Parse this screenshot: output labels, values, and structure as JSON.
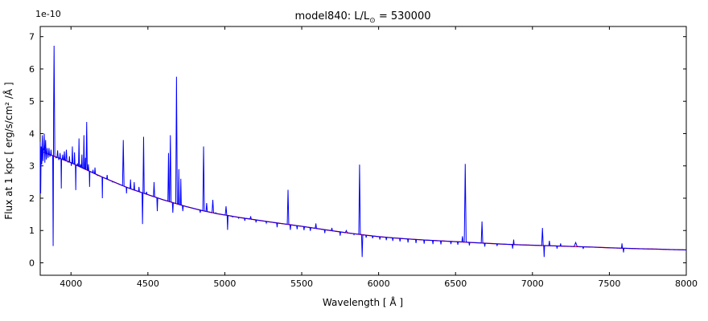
{
  "figure": {
    "title": {
      "prefix": "model840: L/L",
      "sub": "⊙",
      "suffix": " = 530000",
      "full": "model840: L/L⊙ = 530000"
    },
    "offset_label": "1e-10",
    "xlabel": "Wavelength [ Å ]",
    "ylabel": "Flux at 1 kpc [ erg/s/cm² /Å ]"
  },
  "colors": {
    "spectrum": "#0000ff",
    "continuum": "#ff0000",
    "axis": "#000000",
    "background": "#ffffff"
  },
  "chart_data": {
    "type": "line",
    "title": "model840: L/L⊙ = 530000",
    "xlabel": "Wavelength [ Å ]",
    "ylabel": "Flux at 1 kpc [ erg/s/cm² /Å ]",
    "y_offset_scale": "1e-10",
    "xlim": [
      3800,
      8000
    ],
    "ylim": [
      -0.385,
      7.315
    ],
    "xticks": [
      4000,
      4500,
      5000,
      5500,
      6000,
      6500,
      7000,
      7500,
      8000
    ],
    "yticks": [
      0,
      1,
      2,
      3,
      4,
      5,
      6,
      7
    ],
    "grid": false,
    "legend": "none",
    "series": [
      {
        "name": "observed spectrum",
        "color": "#0000ff",
        "style": "continuum plus emission/absorption features"
      },
      {
        "name": "continuum fit",
        "color": "#ff0000",
        "style": "smooth declining continuum"
      }
    ],
    "continuum": [
      [
        3800,
        3.46
      ],
      [
        3850,
        3.37
      ],
      [
        3900,
        3.28
      ],
      [
        3950,
        3.19
      ],
      [
        4000,
        3.1
      ],
      [
        4050,
        2.99
      ],
      [
        4100,
        2.88
      ],
      [
        4150,
        2.77
      ],
      [
        4200,
        2.66
      ],
      [
        4250,
        2.56
      ],
      [
        4300,
        2.46
      ],
      [
        4350,
        2.36
      ],
      [
        4400,
        2.27
      ],
      [
        4450,
        2.19
      ],
      [
        4500,
        2.11
      ],
      [
        4550,
        2.03
      ],
      [
        4600,
        1.95
      ],
      [
        4650,
        1.88
      ],
      [
        4700,
        1.81
      ],
      [
        4750,
        1.74
      ],
      [
        4800,
        1.68
      ],
      [
        4850,
        1.62
      ],
      [
        4900,
        1.57
      ],
      [
        4950,
        1.52
      ],
      [
        5000,
        1.48
      ],
      [
        5100,
        1.4
      ],
      [
        5200,
        1.33
      ],
      [
        5300,
        1.26
      ],
      [
        5400,
        1.195
      ],
      [
        5500,
        1.13
      ],
      [
        5600,
        1.06
      ],
      [
        5700,
        0.99
      ],
      [
        5800,
        0.925
      ],
      [
        5900,
        0.865
      ],
      [
        6000,
        0.81
      ],
      [
        6100,
        0.77
      ],
      [
        6200,
        0.735
      ],
      [
        6300,
        0.705
      ],
      [
        6400,
        0.68
      ],
      [
        6500,
        0.655
      ],
      [
        6600,
        0.63
      ],
      [
        6700,
        0.605
      ],
      [
        6800,
        0.58
      ],
      [
        6900,
        0.56
      ],
      [
        7000,
        0.545
      ],
      [
        7100,
        0.53
      ],
      [
        7200,
        0.515
      ],
      [
        7300,
        0.5
      ],
      [
        7400,
        0.485
      ],
      [
        7500,
        0.465
      ],
      [
        7600,
        0.45
      ],
      [
        7700,
        0.435
      ],
      [
        7800,
        0.425
      ],
      [
        7900,
        0.41
      ],
      [
        8000,
        0.4
      ]
    ],
    "features": [
      [
        3800,
        3.75,
        3
      ],
      [
        3803,
        2.15,
        3
      ],
      [
        3806,
        3.6,
        2
      ],
      [
        3810,
        3.05,
        2
      ],
      [
        3814,
        3.95,
        3
      ],
      [
        3818,
        3.15,
        2
      ],
      [
        3822,
        3.55,
        2
      ],
      [
        3826,
        4.0,
        3
      ],
      [
        3830,
        3.1,
        2
      ],
      [
        3835,
        3.8,
        3
      ],
      [
        3840,
        3.2,
        2
      ],
      [
        3845,
        3.55,
        2
      ],
      [
        3851,
        3.25,
        2
      ],
      [
        3857,
        3.55,
        3
      ],
      [
        3863,
        3.28,
        2
      ],
      [
        3870,
        3.5,
        3
      ],
      [
        3877,
        3.32,
        2
      ],
      [
        3884,
        0.52,
        3
      ],
      [
        3890,
        6.72,
        5
      ],
      [
        3903,
        3.25,
        3
      ],
      [
        3913,
        3.48,
        4
      ],
      [
        3921,
        3.18,
        2
      ],
      [
        3929,
        3.4,
        3
      ],
      [
        3937,
        2.3,
        2
      ],
      [
        3946,
        3.35,
        3
      ],
      [
        3957,
        3.45,
        3
      ],
      [
        3963,
        3.18,
        2
      ],
      [
        3970,
        3.5,
        4
      ],
      [
        3980,
        3.12,
        2
      ],
      [
        3990,
        3.3,
        3
      ],
      [
        4002,
        3.0,
        2
      ],
      [
        4009,
        3.6,
        3
      ],
      [
        4023,
        3.42,
        3
      ],
      [
        4031,
        2.25,
        2
      ],
      [
        4042,
        3.08,
        2
      ],
      [
        4052,
        3.85,
        3
      ],
      [
        4062,
        3.05,
        2
      ],
      [
        4071,
        3.35,
        3
      ],
      [
        4084,
        3.95,
        3
      ],
      [
        4094,
        3.25,
        2
      ],
      [
        4102,
        4.36,
        4
      ],
      [
        4113,
        3.05,
        3
      ],
      [
        4121,
        2.35,
        2
      ],
      [
        4143,
        2.88,
        3
      ],
      [
        4156,
        2.95,
        3
      ],
      [
        4172,
        2.7,
        3
      ],
      [
        4204,
        2.0,
        2
      ],
      [
        4235,
        2.72,
        3
      ],
      [
        4270,
        2.5,
        3
      ],
      [
        4340,
        3.8,
        5
      ],
      [
        4361,
        2.15,
        2
      ],
      [
        4387,
        2.58,
        3
      ],
      [
        4411,
        2.5,
        3
      ],
      [
        4442,
        2.35,
        3
      ],
      [
        4465,
        1.2,
        3
      ],
      [
        4472,
        3.9,
        4
      ],
      [
        4491,
        2.2,
        3
      ],
      [
        4540,
        2.5,
        4
      ],
      [
        4561,
        1.6,
        3
      ],
      [
        4634,
        3.4,
        4
      ],
      [
        4646,
        3.95,
        5
      ],
      [
        4662,
        1.55,
        3
      ],
      [
        4686,
        5.76,
        5
      ],
      [
        4701,
        2.9,
        3
      ],
      [
        4714,
        2.6,
        3
      ],
      [
        4727,
        1.6,
        3
      ],
      [
        4840,
        1.55,
        3
      ],
      [
        4862,
        3.6,
        5
      ],
      [
        4882,
        1.85,
        4
      ],
      [
        4922,
        1.95,
        5
      ],
      [
        4941,
        1.55,
        3
      ],
      [
        5008,
        1.75,
        5
      ],
      [
        5018,
        1.02,
        3
      ],
      [
        5050,
        1.42,
        3
      ],
      [
        5090,
        1.38,
        3
      ],
      [
        5130,
        1.3,
        3
      ],
      [
        5168,
        1.44,
        4
      ],
      [
        5203,
        1.25,
        3
      ],
      [
        5270,
        1.23,
        3
      ],
      [
        5340,
        1.1,
        3
      ],
      [
        5411,
        2.26,
        5
      ],
      [
        5426,
        1.02,
        3
      ],
      [
        5470,
        1.04,
        3
      ],
      [
        5515,
        1.01,
        3
      ],
      [
        5556,
        0.99,
        3
      ],
      [
        5592,
        1.22,
        4
      ],
      [
        5650,
        0.92,
        3
      ],
      [
        5696,
        1.08,
        4
      ],
      [
        5750,
        0.84,
        3
      ],
      [
        5790,
        1.0,
        6
      ],
      [
        5840,
        0.87,
        3
      ],
      [
        5876,
        3.04,
        5
      ],
      [
        5893,
        0.18,
        4
      ],
      [
        5919,
        0.78,
        3
      ],
      [
        5961,
        0.76,
        3
      ],
      [
        6008,
        0.72,
        3
      ],
      [
        6050,
        0.7,
        3
      ],
      [
        6092,
        0.68,
        3
      ],
      [
        6139,
        0.66,
        3
      ],
      [
        6191,
        0.63,
        3
      ],
      [
        6243,
        0.61,
        3
      ],
      [
        6296,
        0.59,
        3
      ],
      [
        6353,
        0.58,
        3
      ],
      [
        6405,
        0.57,
        3
      ],
      [
        6470,
        0.58,
        3
      ],
      [
        6515,
        0.56,
        3
      ],
      [
        6545,
        0.82,
        4
      ],
      [
        6563,
        3.06,
        6
      ],
      [
        6590,
        0.54,
        3
      ],
      [
        6672,
        1.28,
        5
      ],
      [
        6690,
        0.5,
        3
      ],
      [
        6770,
        0.52,
        3
      ],
      [
        6871,
        0.44,
        3
      ],
      [
        6878,
        0.72,
        3
      ],
      [
        7065,
        1.08,
        5
      ],
      [
        7076,
        0.18,
        3
      ],
      [
        7110,
        0.68,
        4
      ],
      [
        7160,
        0.44,
        3
      ],
      [
        7183,
        0.6,
        3
      ],
      [
        7281,
        0.63,
        10
      ],
      [
        7330,
        0.43,
        3
      ],
      [
        7582,
        0.6,
        3
      ],
      [
        7592,
        0.32,
        3
      ]
    ]
  }
}
